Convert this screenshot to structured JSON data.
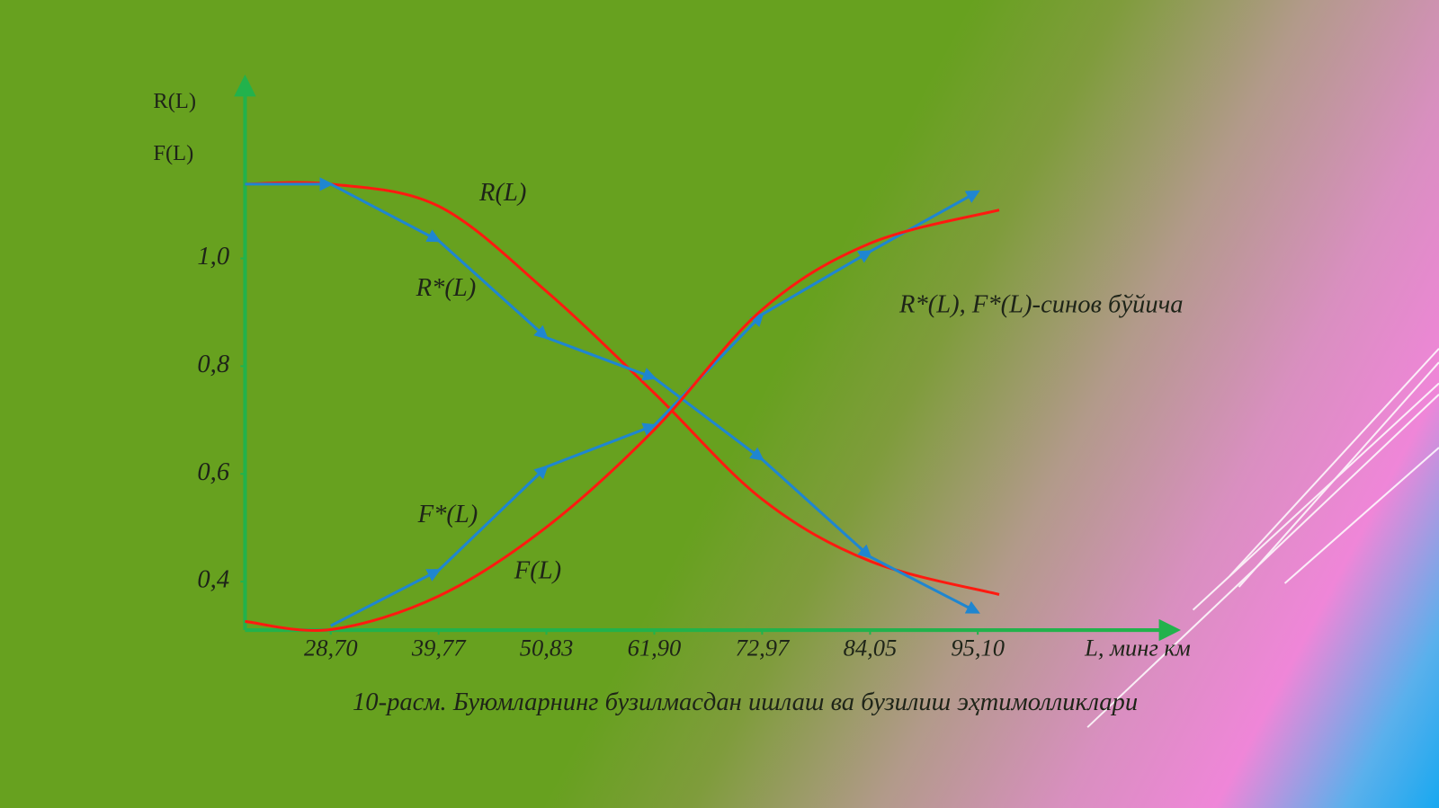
{
  "chart_data": {
    "type": "line",
    "title": "10-расм. Буюмларнинг бузилмасдан ишлаш ва бузилиш эҳтимолликлари",
    "y_labels": [
      "R(L)",
      "F(L)"
    ],
    "x_label": "L, минг км",
    "annotation": "R*(L), F*(L)-синов бўйича",
    "xlim": [
      19.9,
      115.5
    ],
    "ylim": [
      0.31,
      1.33
    ],
    "xticks": [
      {
        "value": 28.7,
        "label": "28,70"
      },
      {
        "value": 39.77,
        "label": "39,77"
      },
      {
        "value": 50.83,
        "label": "50,83"
      },
      {
        "value": 61.9,
        "label": "61,90"
      },
      {
        "value": 72.97,
        "label": "72,97"
      },
      {
        "value": 84.05,
        "label": "84,05"
      },
      {
        "value": 95.1,
        "label": "95,10"
      }
    ],
    "yticks": [
      {
        "value": 1.0,
        "label": "1,0"
      },
      {
        "value": 0.8,
        "label": "0,8"
      },
      {
        "value": 0.6,
        "label": "0,6"
      },
      {
        "value": 0.4,
        "label": "0,4"
      }
    ],
    "series": [
      {
        "name": "R(L)",
        "color": "#ff1a10",
        "x": [
          19.9,
          28.7,
          39.77,
          50.83,
          61.9,
          72.97,
          84.05,
          97.3
        ],
        "values": [
          1.138,
          1.138,
          1.097,
          0.939,
          0.75,
          0.553,
          0.438,
          0.376
        ]
      },
      {
        "name": "R*(L)",
        "color": "#1f86d0",
        "x": [
          19.9,
          28.7,
          39.77,
          50.83,
          61.9,
          72.97,
          84.05,
          95.1
        ],
        "values": [
          1.138,
          1.138,
          1.033,
          0.853,
          0.778,
          0.627,
          0.446,
          0.343
        ]
      },
      {
        "name": "F*(L)",
        "color": "#1f86d0",
        "x": [
          28.7,
          39.77,
          50.83,
          61.9,
          72.97,
          84.05,
          95.1
        ],
        "values": [
          0.318,
          0.421,
          0.613,
          0.69,
          0.896,
          1.013,
          1.124
        ]
      },
      {
        "name": "F(L)",
        "color": "#ff1a10",
        "x": [
          19.9,
          28.7,
          39.77,
          50.83,
          61.9,
          72.97,
          84.05,
          97.3
        ],
        "values": [
          0.326,
          0.311,
          0.373,
          0.501,
          0.682,
          0.905,
          1.028,
          1.09
        ]
      }
    ]
  }
}
